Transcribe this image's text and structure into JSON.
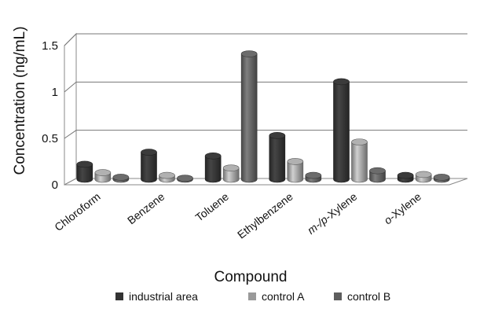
{
  "chart_data": {
    "type": "bar",
    "title": "",
    "xlabel": "Compound",
    "ylabel": "Concentration (ng/mL)",
    "ylim": [
      0,
      1.5
    ],
    "yticks": [
      "0",
      "0.5",
      "1",
      "1.5"
    ],
    "ytick_values": [
      0,
      0.5,
      1,
      1.5
    ],
    "grid": true,
    "legend_position": "bottom",
    "categories": [
      "Chloroform",
      "Benzene",
      "Toluene",
      "Ethylbenzene",
      "m-/p-Xylene",
      "o-Xylene"
    ],
    "category_italic_prefix": [
      "",
      "",
      "",
      "",
      "m-/p-",
      "o-"
    ],
    "category_rest": [
      "Chloroform",
      "Benzene",
      "Toluene",
      "Ethylbenzene",
      "Xylene",
      "Xylene"
    ],
    "series": [
      {
        "name": "industrial area",
        "color": "#333333",
        "values": [
          0.17,
          0.3,
          0.26,
          0.48,
          1.06,
          0.05
        ]
      },
      {
        "name": "control A",
        "color": "#9a9a9a",
        "values": [
          0.08,
          0.05,
          0.13,
          0.2,
          0.41,
          0.06
        ]
      },
      {
        "name": "control B",
        "color": "#5e5e5e",
        "values": [
          0.03,
          0.02,
          1.36,
          0.05,
          0.1,
          0.03
        ]
      }
    ]
  }
}
